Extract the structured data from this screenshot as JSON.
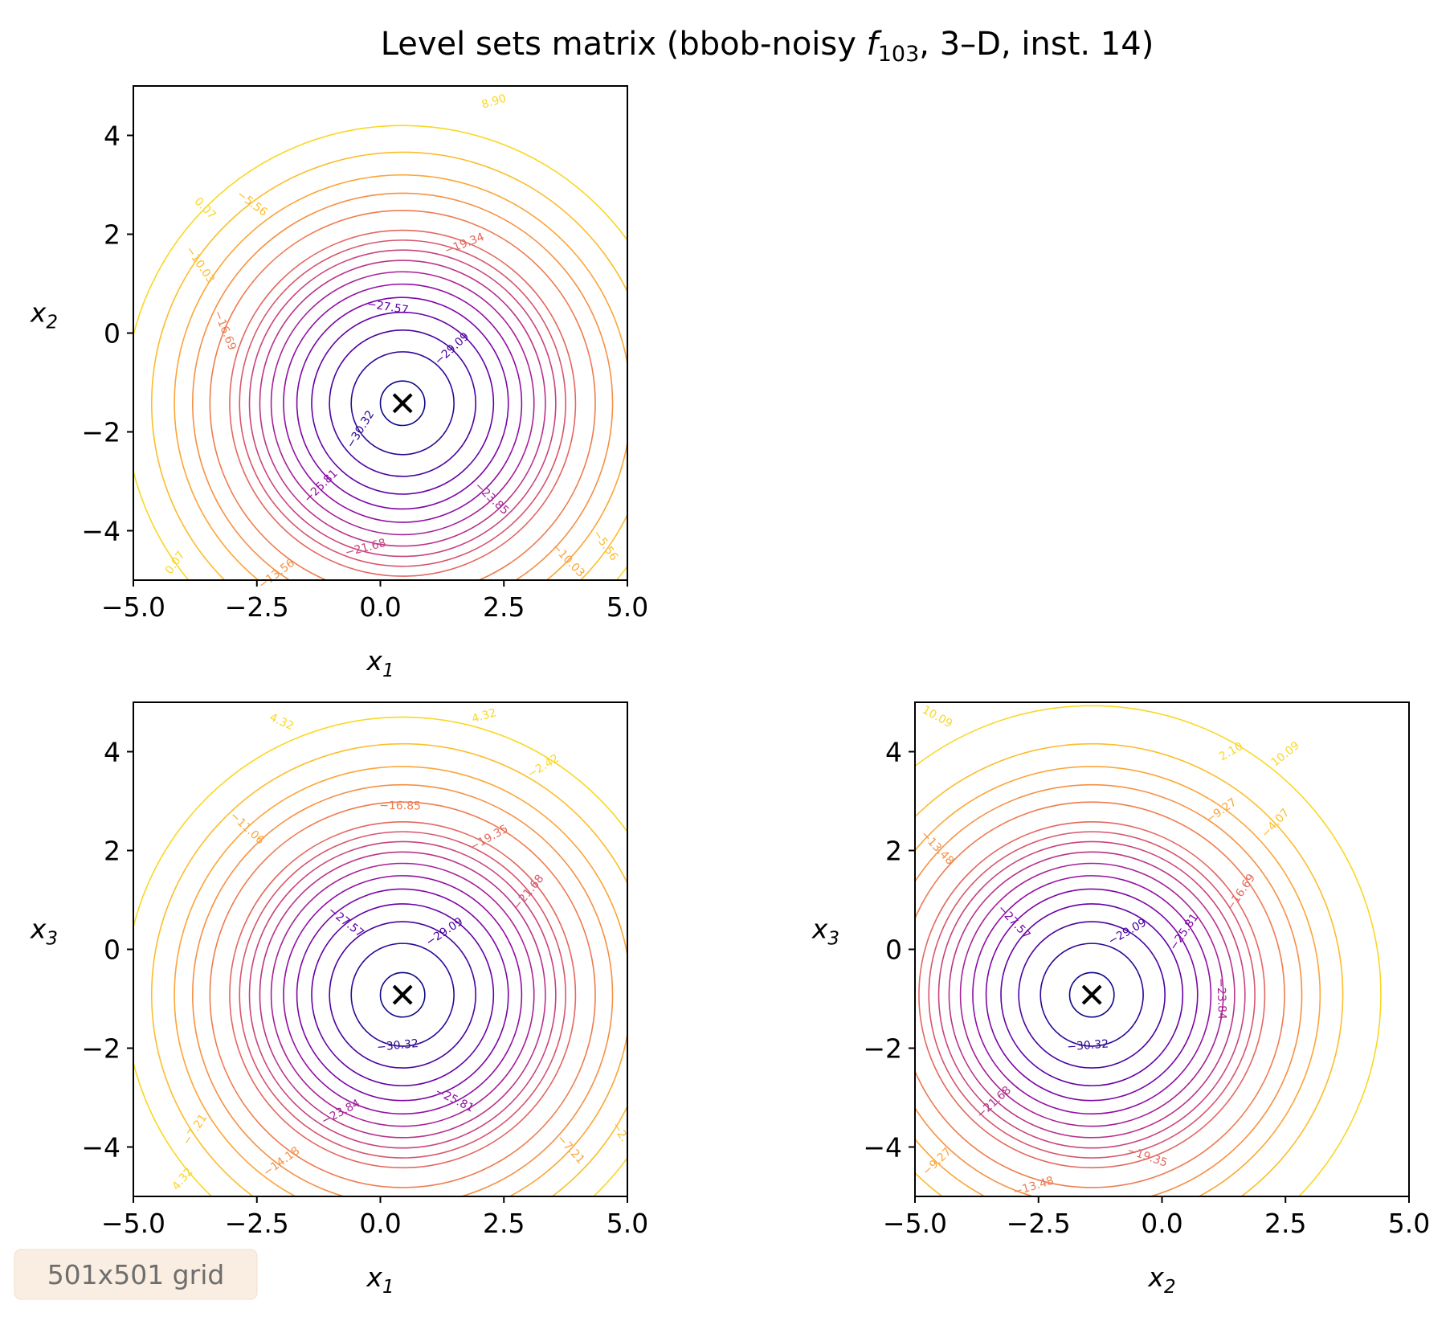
{
  "figure": {
    "title_prefix": "Level sets matrix (bbob-noisy ",
    "title_f": "f",
    "title_sub": "103",
    "title_suffix": ", 3–D, inst. 14)",
    "badge": "501x501 grid"
  },
  "chart_data": [
    {
      "type": "contour",
      "panel": "x1-x2",
      "xlabel": "x",
      "xlabel_sub": "1",
      "ylabel": "x",
      "ylabel_sub": "2",
      "xlim": [
        -5,
        5
      ],
      "ylim": [
        -5,
        5
      ],
      "xticks": [
        "−5.0",
        "−2.5",
        "0.0",
        "2.5",
        "5.0"
      ],
      "yticks": [
        "−4",
        "−2",
        "0",
        "2",
        "4"
      ],
      "optimum": [
        0.45,
        -1.42
      ],
      "contour_radii": [
        0.45,
        1.04,
        1.48,
        1.84,
        2.14,
        2.41,
        2.66,
        2.89,
        3.1,
        3.3,
        3.5,
        3.9,
        4.25,
        4.62,
        5.08,
        5.62
      ],
      "contour_labels": [
        {
          "text": "8.90",
          "x": 2.3,
          "y": 4.68
        },
        {
          "text": "0.07",
          "x": -3.55,
          "y": 2.52
        },
        {
          "text": "−5.56",
          "x": -2.6,
          "y": 2.62
        },
        {
          "text": "−10.03",
          "x": -3.65,
          "y": 1.38
        },
        {
          "text": "−16.69",
          "x": -3.15,
          "y": 0.05
        },
        {
          "text": "−19.34",
          "x": 1.7,
          "y": 1.8
        },
        {
          "text": "−27.57",
          "x": 0.15,
          "y": 0.52
        },
        {
          "text": "−29.09",
          "x": 1.45,
          "y": -0.32
        },
        {
          "text": "−30.32",
          "x": -0.4,
          "y": -1.95
        },
        {
          "text": "−25.81",
          "x": -1.2,
          "y": -3.1
        },
        {
          "text": "−23.85",
          "x": 2.25,
          "y": -3.35
        },
        {
          "text": "−21.68",
          "x": -0.3,
          "y": -4.35
        },
        {
          "text": "−13.56",
          "x": -2.1,
          "y": -4.88
        },
        {
          "text": "0.07",
          "x": -4.15,
          "y": -4.65
        },
        {
          "text": "−10.03",
          "x": 3.8,
          "y": -4.6
        },
        {
          "text": "−5.56",
          "x": 4.55,
          "y": -4.3
        }
      ]
    },
    {
      "type": "contour",
      "panel": "x1-x3",
      "xlabel": "x",
      "xlabel_sub": "1",
      "ylabel": "x",
      "ylabel_sub": "3",
      "xlim": [
        -5,
        5
      ],
      "ylim": [
        -5,
        5
      ],
      "xticks": [
        "−5.0",
        "−2.5",
        "0.0",
        "2.5",
        "5.0"
      ],
      "yticks": [
        "−4",
        "−2",
        "0",
        "2",
        "4"
      ],
      "optimum": [
        0.45,
        -0.92
      ],
      "contour_radii": [
        0.45,
        1.04,
        1.48,
        1.84,
        2.14,
        2.41,
        2.66,
        2.89,
        3.1,
        3.3,
        3.5,
        3.9,
        4.25,
        4.62,
        5.08,
        5.62
      ],
      "contour_labels": [
        {
          "text": "4.32",
          "x": -2.0,
          "y": 4.6
        },
        {
          "text": "4.32",
          "x": 2.1,
          "y": 4.72
        },
        {
          "text": "−2.42",
          "x": 3.3,
          "y": 3.7
        },
        {
          "text": "−11.06",
          "x": -2.7,
          "y": 2.45
        },
        {
          "text": "−16.85",
          "x": 0.4,
          "y": 2.9
        },
        {
          "text": "−19.35",
          "x": 2.2,
          "y": 2.25
        },
        {
          "text": "−21.68",
          "x": 3.0,
          "y": 1.15
        },
        {
          "text": "−27.57",
          "x": -0.7,
          "y": 0.55
        },
        {
          "text": "−29.09",
          "x": 1.3,
          "y": 0.35
        },
        {
          "text": "−30.32",
          "x": 0.35,
          "y": -1.95
        },
        {
          "text": "−23.84",
          "x": -0.8,
          "y": -3.3
        },
        {
          "text": "−25.81",
          "x": 1.5,
          "y": -3.05
        },
        {
          "text": "−7.21",
          "x": -3.75,
          "y": -3.65
        },
        {
          "text": "−14.18",
          "x": -2.0,
          "y": -4.3
        },
        {
          "text": "4.32",
          "x": -4.0,
          "y": -4.65
        },
        {
          "text": "−7.21",
          "x": 3.85,
          "y": -4.05
        },
        {
          "text": "−2.",
          "x": 4.85,
          "y": -3.7
        }
      ]
    },
    {
      "type": "contour",
      "panel": "x2-x3",
      "xlabel": "x",
      "xlabel_sub": "2",
      "ylabel": "x",
      "ylabel_sub": "3",
      "xlim": [
        -5,
        5
      ],
      "ylim": [
        -5,
        5
      ],
      "xticks": [
        "−5.0",
        "−2.5",
        "0.0",
        "2.5",
        "5.0"
      ],
      "yticks": [
        "−4",
        "−2",
        "0",
        "2",
        "4"
      ],
      "optimum": [
        -1.42,
        -0.92
      ],
      "contour_radii": [
        0.45,
        1.04,
        1.48,
        1.84,
        2.14,
        2.41,
        2.66,
        2.89,
        3.1,
        3.3,
        3.5,
        3.9,
        4.25,
        4.62,
        5.08,
        5.85
      ],
      "contour_labels": [
        {
          "text": "10.09",
          "x": -4.55,
          "y": 4.7
        },
        {
          "text": "10.09",
          "x": 2.5,
          "y": 3.95
        },
        {
          "text": "2.10",
          "x": 1.4,
          "y": 4.0
        },
        {
          "text": "−9.27",
          "x": 1.2,
          "y": 2.8
        },
        {
          "text": "−4.07",
          "x": 2.3,
          "y": 2.55
        },
        {
          "text": "−13.48",
          "x": -4.55,
          "y": 2.05
        },
        {
          "text": "−16.69",
          "x": 1.6,
          "y": 1.15
        },
        {
          "text": "−27.57",
          "x": -3.0,
          "y": 0.55
        },
        {
          "text": "−29.09",
          "x": -0.7,
          "y": 0.35
        },
        {
          "text": "−25.81",
          "x": 0.45,
          "y": 0.35
        },
        {
          "text": "−23.84",
          "x": 1.2,
          "y": -1.0
        },
        {
          "text": "−30.32",
          "x": -1.5,
          "y": -1.95
        },
        {
          "text": "−21.68",
          "x": -3.4,
          "y": -3.1
        },
        {
          "text": "−19.35",
          "x": -0.3,
          "y": -4.2
        },
        {
          "text": "−9.27",
          "x": -4.55,
          "y": -4.3
        },
        {
          "text": "−13.48",
          "x": -2.6,
          "y": -4.8
        }
      ]
    }
  ],
  "colors": {
    "colormap": [
      "#0d0887",
      "#41049d",
      "#6a00a8",
      "#8f0da4",
      "#b12a90",
      "#cc4778",
      "#e16462",
      "#f2844b",
      "#fca636",
      "#fcce25",
      "#f0f921"
    ],
    "optimum_marker": "#000000",
    "badge_background": "#faeee2",
    "badge_text": "#6e6e6e"
  }
}
